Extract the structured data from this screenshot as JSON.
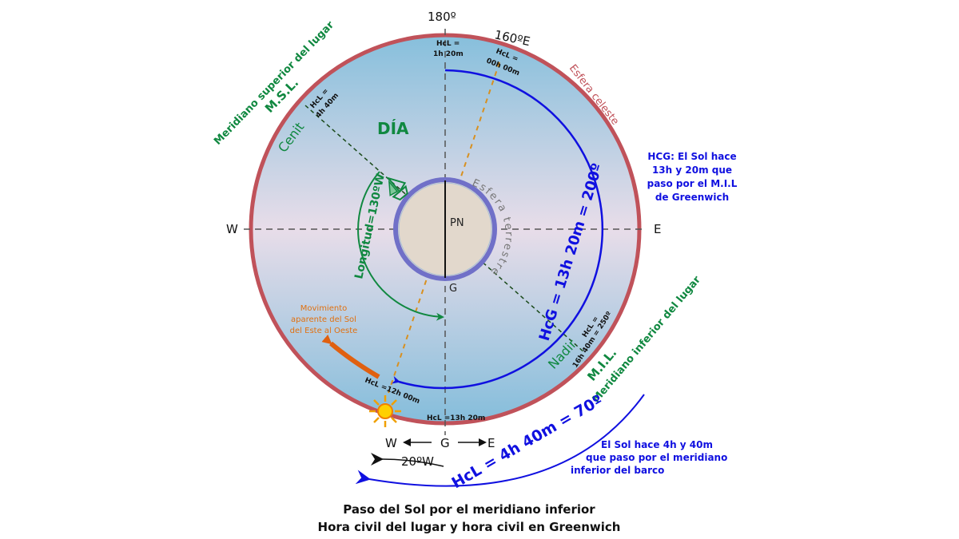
{
  "colors": {
    "celestial_rim": "#c0525a",
    "sky_top": "#8cc3de",
    "sky_mid": "#e6dce8",
    "earth_ring": "#7070c8",
    "blue_arc": "#1010e0",
    "green": "#108840",
    "orange": "#e07010",
    "dashed_orange": "#d89020"
  },
  "labels": {
    "top_180": "180º",
    "e160": "160ºE",
    "w": "W",
    "e": "E",
    "pn": "PN",
    "g": "G",
    "dia": "DÍA",
    "esfera_celeste": "Esfera celeste",
    "esfera_terrestre": "Esfera terrestre",
    "meridiano_superior": "Meridiano superior del lugar",
    "msl": "M.S.L.",
    "cenit": "Cenit",
    "hcl_4h40_l1": "HcL =",
    "hcl_4h40_l2": "4h 40m",
    "hcl_1h20_l1": "HcL =",
    "hcl_1h20_l2": "1h 20m",
    "hcl_00h_l1": "HcL =",
    "hcl_00h_l2": "00h 00m",
    "longitud": "Longitud=130ºW",
    "hcg_arc": "HcG = 13h 20m = 200º",
    "hcg_note_l1": "HCG:  El Sol hace",
    "hcg_note_l2": "13h y 20m que",
    "hcg_note_l3": "paso por el M.I.L",
    "hcg_note_l4": "de Greenwich",
    "nadir": "Nadir",
    "hcl_16h_l1": "HcL =",
    "hcl_16h_l2": "16h 40m = 250º",
    "mil": "M.I.L.",
    "meridiano_inferior": "Meridiano inferior del lugar",
    "movimiento_l1": "Movimiento",
    "movimiento_l2": "aparente del Sol",
    "movimiento_l3": "del Este al Oeste",
    "hcl_12h": "HcL =12h 00m",
    "hcl_13h20": "HcL =13h 20m",
    "bottom_w": "W",
    "bottom_g": "G",
    "bottom_e": "E",
    "w20": "20ºW",
    "hcl_arc": "HcL = 4h 40m = 70º",
    "sol_note_l1": "El Sol hace 4h y 40m",
    "sol_note_l2": "que paso por el meridiano",
    "sol_note_l3": "inferior del barco"
  },
  "caption": {
    "line1": "Paso del Sol por el meridiano inferior",
    "line2": "Hora civil del lugar y hora civil en Greenwich"
  }
}
